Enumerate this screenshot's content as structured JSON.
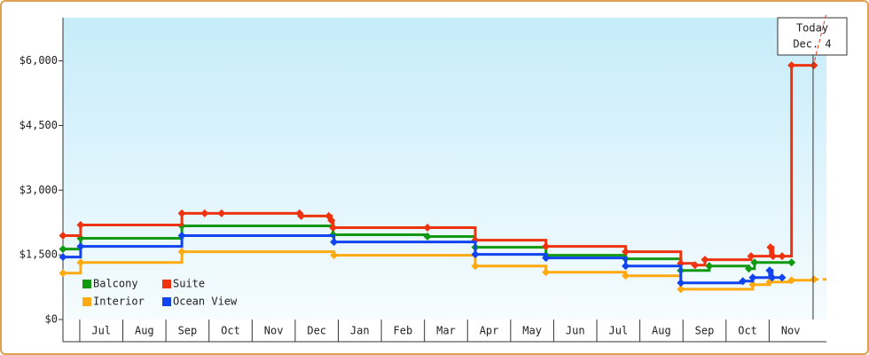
{
  "chart_data": {
    "type": "step-line",
    "categories": [
      "Jul",
      "Aug",
      "Sep",
      "Oct",
      "Nov",
      "Dec",
      "Jan",
      "Feb",
      "Mar",
      "Apr",
      "May",
      "Jun",
      "Jul",
      "Aug",
      "Sep",
      "Oct",
      "Nov"
    ],
    "xlim": [
      -0.39,
      17.33
    ],
    "ylim": [
      0,
      7000
    ],
    "yticks": [
      {
        "value": 0,
        "label": "$0"
      },
      {
        "value": 1500,
        "label": "$1,500"
      },
      {
        "value": 3000,
        "label": "$3,000"
      },
      {
        "value": 4500,
        "label": "$4,500"
      },
      {
        "value": 6000,
        "label": "$6,000"
      }
    ],
    "series": [
      {
        "name": "Balcony",
        "color": "#119911",
        "x": [
          -0.39,
          0.02,
          2.37,
          5.88,
          8.07,
          9.18,
          10.82,
          12.67,
          13.95,
          14.61,
          15.53,
          15.66,
          16.52
        ],
        "values": [
          1634,
          1883,
          2172,
          1966,
          1924,
          1676,
          1490,
          1407,
          1138,
          1241,
          1179,
          1324,
          1324
        ]
      },
      {
        "name": "Suite",
        "color": "#ee3311",
        "x": [
          -0.39,
          0.02,
          2.37,
          2.9,
          3.29,
          5.1,
          5.14,
          5.78,
          5.84,
          5.88,
          8.07,
          9.18,
          10.82,
          12.67,
          13.95,
          14.28,
          14.51,
          15.58,
          16.03,
          16.09,
          16.3,
          16.52,
          17.04
        ],
        "values": [
          1945,
          2193,
          2462,
          2462,
          2462,
          2462,
          2400,
          2400,
          2297,
          2131,
          2131,
          1841,
          1697,
          1572,
          1303,
          1262,
          1386,
          1469,
          1676,
          1469,
          1469,
          5897,
          5897
        ]
      },
      {
        "name": "Interior",
        "color": "#ffaa11",
        "x": [
          -0.39,
          0.02,
          2.37,
          5.9,
          9.18,
          10.82,
          12.67,
          13.95,
          15.62,
          16.01,
          16.52,
          17.04
        ],
        "values": [
          1076,
          1324,
          1572,
          1490,
          1241,
          1097,
          1014,
          703,
          807,
          869,
          910,
          931
        ]
      },
      {
        "name": "Ocean View",
        "color": "#1144ee",
        "x": [
          -0.39,
          0.02,
          2.37,
          5.9,
          9.18,
          10.82,
          12.67,
          13.95,
          15.39,
          15.62,
          16.01,
          16.07,
          16.3
        ],
        "values": [
          1448,
          1697,
          1945,
          1800,
          1510,
          1428,
          1241,
          848,
          890,
          972,
          1138,
          972,
          972
        ]
      }
    ],
    "today": {
      "x": 17.02,
      "label": "Today",
      "date": "Dec. 4"
    }
  }
}
